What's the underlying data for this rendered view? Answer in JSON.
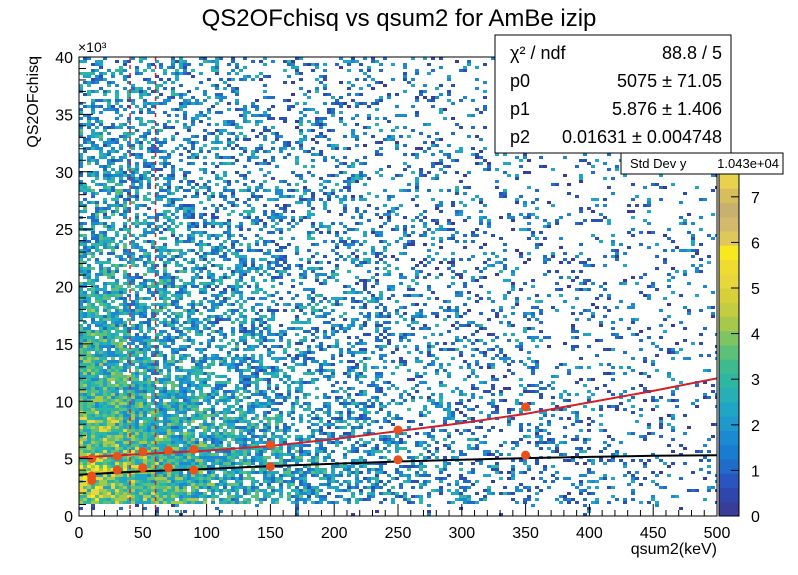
{
  "chart_data": {
    "type": "heatmap",
    "title": "QS2OFchisq vs qsum2 for AmBe izip",
    "xlabel": "qsum2(keV)",
    "ylabel": "QS2OFchisq",
    "y_exponent": "×10³",
    "xlim": [
      0,
      500
    ],
    "ylim": [
      0,
      40
    ],
    "x_ticks": [
      0,
      50,
      100,
      150,
      200,
      250,
      300,
      350,
      400,
      450,
      500
    ],
    "y_ticks": [
      0,
      5,
      10,
      15,
      20,
      25,
      30,
      35,
      40
    ],
    "x_tick_labels": [
      "0",
      "50",
      "100",
      "150",
      "200",
      "250",
      "300",
      "350",
      "400",
      "450",
      "500"
    ],
    "y_tick_labels": [
      "0",
      "5",
      "10",
      "15",
      "20",
      "25",
      "30",
      "35",
      "40"
    ],
    "colorbar": {
      "range": [
        0,
        7.5
      ],
      "ticks": [
        0,
        1,
        2,
        3,
        4,
        5,
        6,
        7
      ],
      "tick_labels": [
        "0",
        "1",
        "2",
        "3",
        "4",
        "5",
        "6",
        "7"
      ]
    },
    "vertical_lines_x": [
      40,
      60
    ],
    "series": [
      {
        "name": "upper points",
        "color": "#e8501c",
        "x": [
          10,
          30,
          50,
          70,
          90,
          150,
          250,
          350
        ],
        "y": [
          5.0,
          5.2,
          5.6,
          5.7,
          5.8,
          6.2,
          7.5,
          9.5
        ]
      },
      {
        "name": "lower points",
        "color": "#e8501c",
        "x": [
          10,
          10,
          30,
          50,
          70,
          90,
          150,
          250,
          350
        ],
        "y": [
          3.5,
          3.1,
          4.0,
          4.2,
          4.2,
          4.0,
          4.3,
          4.9,
          5.3
        ]
      },
      {
        "name": "upper fit",
        "color": "#d0202a",
        "x": [
          0,
          50,
          100,
          150,
          200,
          250,
          300,
          350,
          400,
          450,
          500
        ],
        "y": [
          5.1,
          5.4,
          5.7,
          6.1,
          6.7,
          7.4,
          8.1,
          8.9,
          9.9,
          10.9,
          12.0
        ]
      },
      {
        "name": "lower fit",
        "color": "#000000",
        "x": [
          0,
          50,
          100,
          150,
          200,
          250,
          300,
          350,
          400,
          450,
          500
        ],
        "y": [
          3.6,
          3.9,
          4.1,
          4.35,
          4.55,
          4.75,
          4.9,
          5.05,
          5.15,
          5.25,
          5.3
        ]
      }
    ],
    "stats_box": {
      "rows": [
        {
          "label": "χ² / ndf",
          "value": "88.8 / 5"
        },
        {
          "label": "p0",
          "value": "5075 ± 71.05"
        },
        {
          "label": "p1",
          "value": "5.876 ± 1.406"
        },
        {
          "label": "p2",
          "value": "0.01631 ± 0.004748"
        }
      ],
      "extra_label": "Std Dev y",
      "extra_value": "1.043e+04"
    }
  }
}
